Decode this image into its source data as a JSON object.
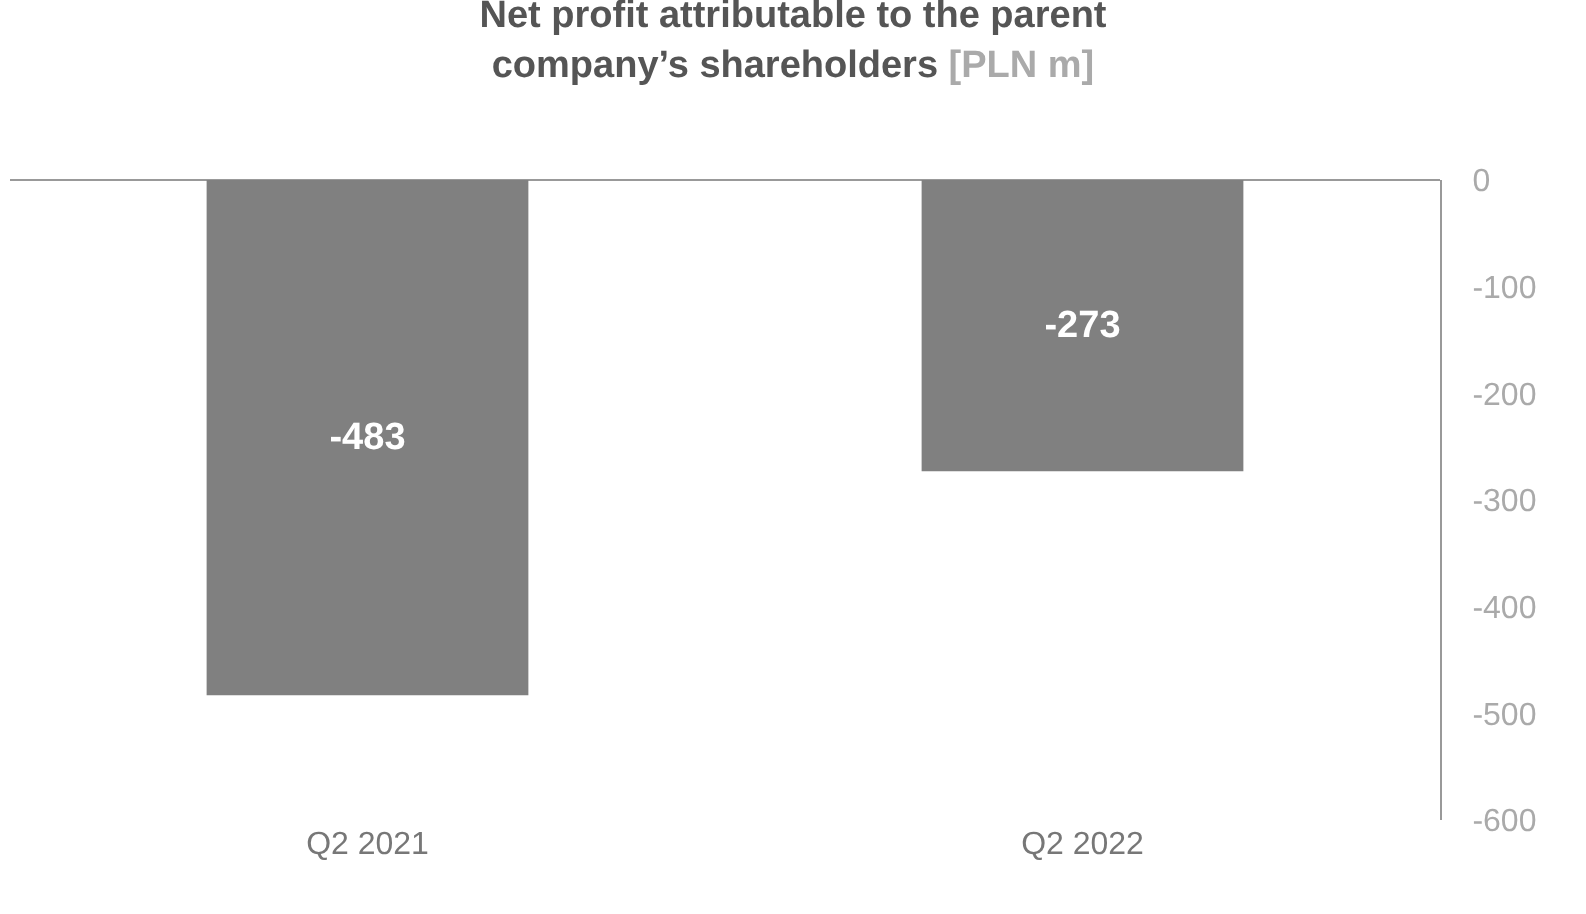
{
  "chart_data": {
    "type": "bar",
    "title": "Net profit attributable to the parent company’s shareholders",
    "subtitle": "[PLN m]",
    "categories": [
      "Q2 2021",
      "Q2 2022"
    ],
    "values": [
      -483,
      -273
    ],
    "color": "#808080",
    "ylim": [
      -600,
      0
    ],
    "yticks": [
      0,
      -100,
      -200,
      -300,
      -400,
      -500,
      -600
    ],
    "grid": false,
    "data_labels": true
  }
}
